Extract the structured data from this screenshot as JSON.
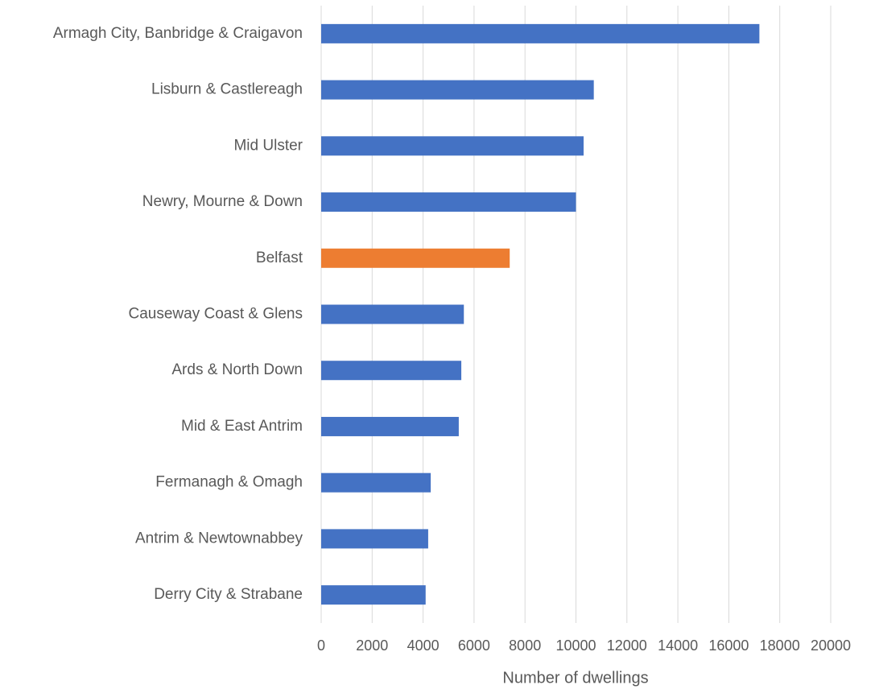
{
  "chart_data": {
    "type": "hbar",
    "x_label": "Number of dwellings",
    "categories": [
      "Armagh City, Banbridge & Craigavon",
      "Lisburn & Castlereagh",
      "Mid Ulster",
      "Newry, Mourne & Down",
      "Belfast",
      "Causeway Coast & Glens",
      "Ards & North Down",
      "Mid & East Antrim",
      "Fermanagh & Omagh",
      "Antrim & Newtownabbey",
      "Derry City & Strabane"
    ],
    "values": [
      17200,
      10700,
      10300,
      10000,
      7400,
      5600,
      5500,
      5400,
      4300,
      4200,
      4100
    ],
    "colors": [
      "#4472c4",
      "#4472c4",
      "#4472c4",
      "#4472c4",
      "#ed7d31",
      "#4472c4",
      "#4472c4",
      "#4472c4",
      "#4472c4",
      "#4472c4",
      "#4472c4"
    ],
    "xlim": [
      0,
      20000
    ],
    "xticks": [
      0,
      2000,
      4000,
      6000,
      8000,
      10000,
      12000,
      14000,
      16000,
      18000,
      20000
    ],
    "grid": true
  }
}
